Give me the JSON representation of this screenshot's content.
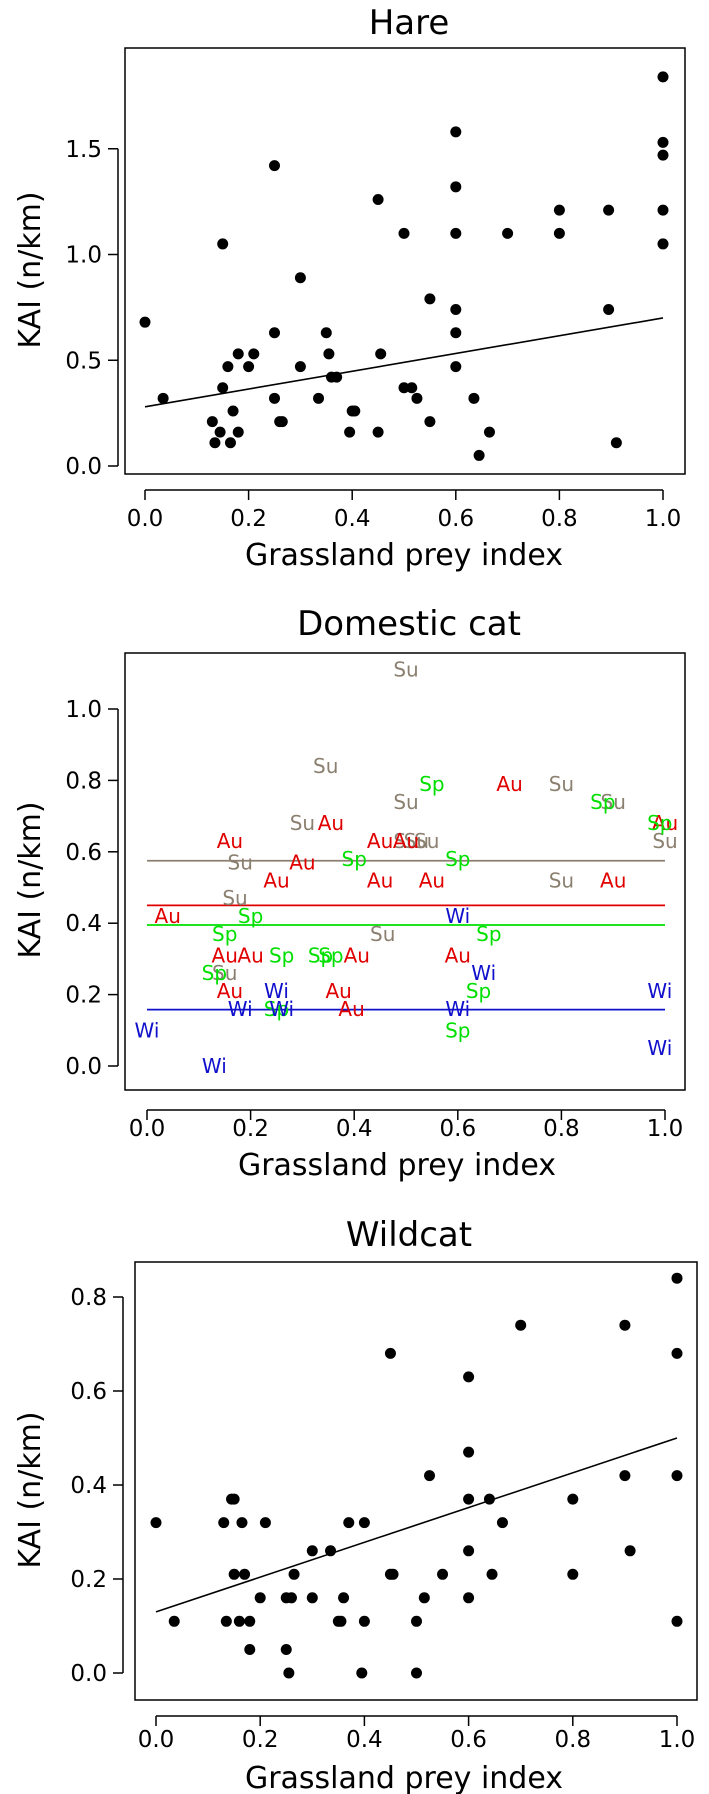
{
  "colors": {
    "Su": "#8B8070",
    "Au": "#E00000",
    "Sp": "#00E000",
    "Wi": "#1010CC",
    "points": "#000000",
    "line": "#000000"
  },
  "chart_data": [
    {
      "type": "scatter",
      "title": "Hare",
      "xlabel": "Grassland prey index",
      "ylabel": "KAI (n/km)",
      "xlim": [
        0,
        1
      ],
      "ylim": [
        0,
        1.92
      ],
      "xticks": [
        "0.0",
        "0.2",
        "0.4",
        "0.6",
        "0.8",
        "1.0"
      ],
      "yticks": [
        "0.0",
        "0.5",
        "1.0",
        "1.5"
      ],
      "regression": {
        "x": [
          0,
          1
        ],
        "y": [
          0.28,
          0.7
        ]
      },
      "points": [
        [
          0.0,
          0.68
        ],
        [
          0.035,
          0.32
        ],
        [
          0.13,
          0.21
        ],
        [
          0.135,
          0.11
        ],
        [
          0.145,
          0.16
        ],
        [
          0.15,
          0.37
        ],
        [
          0.15,
          1.05
        ],
        [
          0.16,
          0.47
        ],
        [
          0.165,
          0.11
        ],
        [
          0.17,
          0.26
        ],
        [
          0.18,
          0.16
        ],
        [
          0.18,
          0.53
        ],
        [
          0.2,
          0.47
        ],
        [
          0.21,
          0.53
        ],
        [
          0.25,
          1.42
        ],
        [
          0.25,
          0.63
        ],
        [
          0.25,
          0.32
        ],
        [
          0.26,
          0.21
        ],
        [
          0.265,
          0.21
        ],
        [
          0.3,
          0.89
        ],
        [
          0.3,
          0.47
        ],
        [
          0.335,
          0.32
        ],
        [
          0.35,
          0.63
        ],
        [
          0.355,
          0.53
        ],
        [
          0.36,
          0.42
        ],
        [
          0.37,
          0.42
        ],
        [
          0.395,
          0.16
        ],
        [
          0.4,
          0.26
        ],
        [
          0.405,
          0.26
        ],
        [
          0.45,
          1.26
        ],
        [
          0.45,
          0.16
        ],
        [
          0.455,
          0.53
        ],
        [
          0.5,
          1.1
        ],
        [
          0.5,
          0.37
        ],
        [
          0.515,
          0.37
        ],
        [
          0.525,
          0.32
        ],
        [
          0.55,
          0.79
        ],
        [
          0.55,
          0.21
        ],
        [
          0.6,
          1.58
        ],
        [
          0.6,
          1.32
        ],
        [
          0.6,
          1.1
        ],
        [
          0.6,
          0.74
        ],
        [
          0.6,
          0.63
        ],
        [
          0.6,
          0.47
        ],
        [
          0.635,
          0.32
        ],
        [
          0.645,
          0.05
        ],
        [
          0.665,
          0.16
        ],
        [
          0.7,
          1.1
        ],
        [
          0.8,
          1.21
        ],
        [
          0.8,
          1.1
        ],
        [
          0.895,
          1.21
        ],
        [
          0.895,
          0.74
        ],
        [
          0.91,
          0.11
        ],
        [
          1.0,
          1.84
        ],
        [
          1.0,
          1.53
        ],
        [
          1.0,
          1.47
        ],
        [
          1.0,
          1.21
        ],
        [
          1.0,
          1.05
        ]
      ]
    },
    {
      "type": "scatter",
      "title": "Domestic cat",
      "xlabel": "Grassland prey index",
      "ylabel": "KAI (n/km)",
      "xlim": [
        0,
        1
      ],
      "ylim": [
        0,
        1.12
      ],
      "xticks": [
        "0.0",
        "0.2",
        "0.4",
        "0.6",
        "0.8",
        "1.0"
      ],
      "yticks": [
        "0.0",
        "0.2",
        "0.4",
        "0.6",
        "0.8",
        "1.0"
      ],
      "series": [
        {
          "name": "Su",
          "mean": 0.575,
          "points": [
            [
              0.5,
              1.11
            ],
            [
              0.345,
              0.84
            ],
            [
              0.5,
              0.74
            ],
            [
              0.8,
              0.79
            ],
            [
              0.9,
              0.74
            ],
            [
              0.3,
              0.68
            ],
            [
              0.5,
              0.63
            ],
            [
              0.52,
              0.63
            ],
            [
              0.54,
              0.63
            ],
            [
              0.18,
              0.57
            ],
            [
              1.0,
              0.63
            ],
            [
              0.8,
              0.52
            ],
            [
              0.17,
              0.47
            ],
            [
              0.455,
              0.37
            ],
            [
              0.15,
              0.26
            ]
          ]
        },
        {
          "name": "Au",
          "mean": 0.45,
          "points": [
            [
              0.7,
              0.79
            ],
            [
              0.355,
              0.68
            ],
            [
              0.16,
              0.63
            ],
            [
              0.45,
              0.63
            ],
            [
              0.5,
              0.63
            ],
            [
              0.3,
              0.57
            ],
            [
              0.25,
              0.52
            ],
            [
              0.45,
              0.52
            ],
            [
              0.55,
              0.52
            ],
            [
              0.9,
              0.52
            ],
            [
              1.0,
              0.68
            ],
            [
              0.04,
              0.42
            ],
            [
              0.15,
              0.31
            ],
            [
              0.2,
              0.31
            ],
            [
              0.405,
              0.31
            ],
            [
              0.6,
              0.31
            ],
            [
              0.16,
              0.21
            ],
            [
              0.37,
              0.21
            ],
            [
              0.395,
              0.16
            ]
          ]
        },
        {
          "name": "Sp",
          "mean": 0.395,
          "points": [
            [
              0.55,
              0.79
            ],
            [
              0.88,
              0.74
            ],
            [
              0.99,
              0.68
            ],
            [
              0.4,
              0.58
            ],
            [
              0.6,
              0.58
            ],
            [
              0.2,
              0.42
            ],
            [
              0.15,
              0.37
            ],
            [
              0.66,
              0.37
            ],
            [
              0.26,
              0.31
            ],
            [
              0.335,
              0.31
            ],
            [
              0.355,
              0.31
            ],
            [
              0.13,
              0.26
            ],
            [
              0.64,
              0.21
            ],
            [
              0.25,
              0.16
            ],
            [
              0.6,
              0.1
            ]
          ]
        },
        {
          "name": "Wi",
          "mean": 0.158,
          "points": [
            [
              0.6,
              0.42
            ],
            [
              0.65,
              0.26
            ],
            [
              0.25,
              0.21
            ],
            [
              0.99,
              0.21
            ],
            [
              0.18,
              0.16
            ],
            [
              0.26,
              0.16
            ],
            [
              0.6,
              0.16
            ],
            [
              0.0,
              0.1
            ],
            [
              0.99,
              0.05
            ],
            [
              0.13,
              0.0
            ]
          ]
        }
      ]
    },
    {
      "type": "scatter",
      "title": "Wildcat",
      "xlabel": "Grassland prey index",
      "ylabel": "KAI (n/km)",
      "xlim": [
        0,
        1
      ],
      "ylim": [
        0,
        0.86
      ],
      "xticks": [
        "0.0",
        "0.2",
        "0.4",
        "0.6",
        "0.8",
        "1.0"
      ],
      "yticks": [
        "0.0",
        "0.2",
        "0.4",
        "0.6",
        "0.8"
      ],
      "regression": {
        "x": [
          0,
          1
        ],
        "y": [
          0.13,
          0.5
        ]
      },
      "points": [
        [
          0.0,
          0.32
        ],
        [
          0.035,
          0.11
        ],
        [
          0.13,
          0.32
        ],
        [
          0.135,
          0.11
        ],
        [
          0.145,
          0.37
        ],
        [
          0.15,
          0.37
        ],
        [
          0.15,
          0.21
        ],
        [
          0.16,
          0.11
        ],
        [
          0.165,
          0.32
        ],
        [
          0.17,
          0.21
        ],
        [
          0.18,
          0.05
        ],
        [
          0.18,
          0.11
        ],
        [
          0.2,
          0.16
        ],
        [
          0.21,
          0.32
        ],
        [
          0.25,
          0.05
        ],
        [
          0.25,
          0.16
        ],
        [
          0.255,
          0.0
        ],
        [
          0.26,
          0.16
        ],
        [
          0.265,
          0.21
        ],
        [
          0.3,
          0.26
        ],
        [
          0.3,
          0.16
        ],
        [
          0.335,
          0.26
        ],
        [
          0.35,
          0.11
        ],
        [
          0.355,
          0.11
        ],
        [
          0.36,
          0.16
        ],
        [
          0.37,
          0.32
        ],
        [
          0.395,
          0.0
        ],
        [
          0.4,
          0.32
        ],
        [
          0.4,
          0.11
        ],
        [
          0.45,
          0.68
        ],
        [
          0.45,
          0.21
        ],
        [
          0.455,
          0.21
        ],
        [
          0.5,
          0.11
        ],
        [
          0.5,
          0.0
        ],
        [
          0.515,
          0.16
        ],
        [
          0.525,
          0.42
        ],
        [
          0.55,
          0.21
        ],
        [
          0.6,
          0.63
        ],
        [
          0.6,
          0.47
        ],
        [
          0.6,
          0.37
        ],
        [
          0.6,
          0.26
        ],
        [
          0.6,
          0.16
        ],
        [
          0.64,
          0.37
        ],
        [
          0.645,
          0.21
        ],
        [
          0.665,
          0.32
        ],
        [
          0.7,
          0.74
        ],
        [
          0.8,
          0.37
        ],
        [
          0.8,
          0.21
        ],
        [
          0.9,
          0.74
        ],
        [
          0.9,
          0.42
        ],
        [
          0.91,
          0.26
        ],
        [
          1.0,
          0.84
        ],
        [
          1.0,
          0.68
        ],
        [
          1.0,
          0.42
        ],
        [
          1.0,
          0.11
        ]
      ]
    }
  ]
}
